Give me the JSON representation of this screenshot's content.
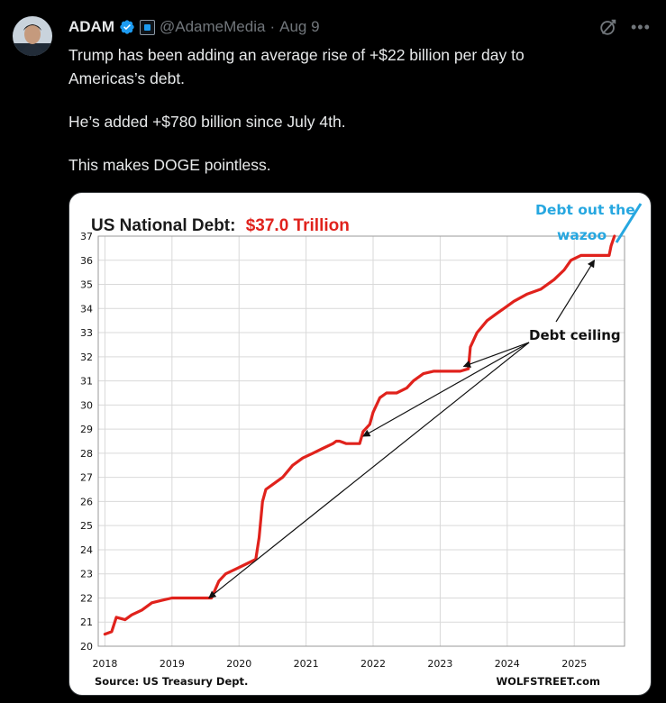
{
  "post": {
    "author_name": "ADAM",
    "handle": "@AdameMedia",
    "separator": "·",
    "date": "Aug 9",
    "text_line1": "Trump has been adding an average rise of +$22 billion per day to",
    "text_line2": "Americas’s debt.",
    "text_line3": "He’s added +$780 billion since July 4th.",
    "text_line4": "This makes DOGE pointless.",
    "icons": [
      "avatar",
      "verified-badge-icon",
      "affiliate-badge-icon",
      "grok-icon",
      "more-icon"
    ],
    "accent_color": "#1d9bf0"
  },
  "chart_data": {
    "type": "line",
    "title_prefix": "US National Debt:",
    "title_value": "$37.0 Trillion",
    "title_value_color": "#e0221c",
    "line_color": "#e0221c",
    "grid": true,
    "xlim": [
      2017.9,
      2025.75
    ],
    "ylim": [
      20,
      37
    ],
    "x_ticks": [
      "2018",
      "2019",
      "2020",
      "2021",
      "2022",
      "2023",
      "2024",
      "2025"
    ],
    "y_ticks": [
      "20",
      "21",
      "22",
      "23",
      "24",
      "25",
      "26",
      "27",
      "28",
      "29",
      "30",
      "31",
      "32",
      "33",
      "34",
      "35",
      "36",
      "37"
    ],
    "x": [
      2018.0,
      2018.1,
      2018.17,
      2018.3,
      2018.4,
      2018.55,
      2018.7,
      2018.85,
      2019.0,
      2019.15,
      2019.3,
      2019.45,
      2019.59,
      2019.7,
      2019.8,
      2019.95,
      2020.1,
      2020.25,
      2020.3,
      2020.35,
      2020.4,
      2020.5,
      2020.65,
      2020.8,
      2020.95,
      2021.1,
      2021.25,
      2021.4,
      2021.45,
      2021.5,
      2021.6,
      2021.8,
      2021.85,
      2021.95,
      2022.0,
      2022.1,
      2022.2,
      2022.35,
      2022.5,
      2022.6,
      2022.75,
      2022.9,
      2023.0,
      2023.1,
      2023.3,
      2023.42,
      2023.45,
      2023.55,
      2023.7,
      2023.85,
      2023.95,
      2024.1,
      2024.3,
      2024.5,
      2024.7,
      2024.85,
      2024.95,
      2025.1,
      2025.2,
      2025.4,
      2025.52,
      2025.55,
      2025.6
    ],
    "values": [
      20.5,
      20.6,
      21.2,
      21.1,
      21.3,
      21.5,
      21.8,
      21.9,
      22.0,
      22.0,
      22.0,
      22.0,
      22.0,
      22.7,
      23.0,
      23.2,
      23.4,
      23.6,
      24.5,
      26.0,
      26.5,
      26.7,
      27.0,
      27.5,
      27.8,
      28.0,
      28.2,
      28.4,
      28.5,
      28.5,
      28.4,
      28.4,
      28.9,
      29.2,
      29.7,
      30.3,
      30.5,
      30.5,
      30.7,
      31.0,
      31.3,
      31.4,
      31.4,
      31.4,
      31.4,
      31.5,
      32.4,
      33.0,
      33.5,
      33.8,
      34.0,
      34.3,
      34.6,
      34.8,
      35.2,
      35.6,
      36.0,
      36.2,
      36.2,
      36.2,
      36.2,
      36.6,
      37.0
    ],
    "annotation_debt_ceiling": "Debt ceiling",
    "annotation_wazoo_line1": "Debt out the",
    "annotation_wazoo_line2": "wazoo",
    "annotation_wazoo_color": "#26a7e0",
    "source": "Source: US Treasury Dept.",
    "credit": "WOLFSTREET.com"
  }
}
